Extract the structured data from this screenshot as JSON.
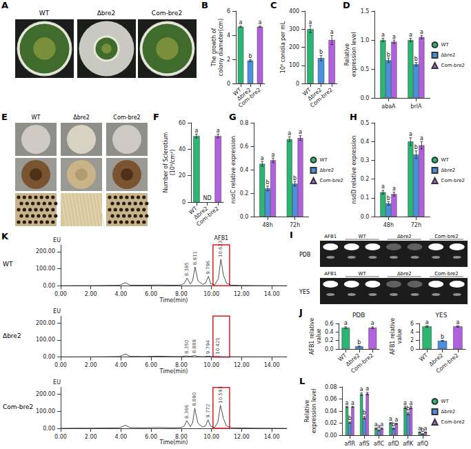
{
  "panels": {
    "A": {
      "panel": "A",
      "labels": [
        "WT",
        "Δbre2",
        "Com-bre2"
      ]
    },
    "E": {
      "panel": "E",
      "labels": [
        "WT",
        "Δbre2",
        "Com-bre2"
      ]
    },
    "I": {
      "panel": "I",
      "media": [
        "PDB",
        "YES"
      ],
      "standard": "AFB1",
      "labels": [
        "WT",
        "Δbre2",
        "Com-bre2"
      ]
    }
  },
  "chart_data": [
    {
      "panel": "B",
      "type": "bar",
      "categories": [
        "WT",
        "Δbre2",
        "Com-bre2"
      ],
      "values": [
        4.7,
        1.9,
        4.7
      ],
      "errors": [
        0.05,
        0.08,
        0.05
      ],
      "significance": [
        "a",
        "b",
        "a"
      ],
      "colors": [
        "#2bb673",
        "#4a8fe0",
        "#b161e0"
      ],
      "y_label": "The growth of colony diameter(cm)",
      "ylim": [
        0,
        6
      ],
      "yticks": [
        0,
        2,
        4,
        6
      ]
    },
    {
      "panel": "C",
      "type": "bar",
      "categories": [
        "WT",
        "Δbre2",
        "Com-bre2"
      ],
      "values": [
        300,
        140,
        240
      ],
      "errors": [
        20,
        15,
        25
      ],
      "significance": [
        "a",
        "b",
        "a"
      ],
      "colors": [
        "#2bb673",
        "#4a8fe0",
        "#b161e0"
      ],
      "y_label": "10⁶ conidia per mL",
      "ylim": [
        0,
        400
      ],
      "yticks": [
        0,
        100,
        200,
        300,
        400
      ]
    },
    {
      "panel": "D",
      "type": "bar",
      "categories": [
        "abaA",
        "brlA"
      ],
      "legend": "right",
      "y_label": "Relative expression level",
      "ylim": [
        0,
        1.5
      ],
      "yticks": [
        {
          "value": 0,
          "label": "0.0"
        },
        {
          "value": 0.5,
          "label": "0.5"
        },
        {
          "value": 1,
          "label": "1.0"
        },
        {
          "value": 1.5,
          "label": "1.5"
        }
      ],
      "series": [
        {
          "name": "WT",
          "color": "#2bb673",
          "marker": "circle",
          "values": [
            1.0,
            1.0
          ],
          "errors": [
            0.03,
            0.03
          ],
          "significance": [
            "a",
            "a"
          ]
        },
        {
          "name": "Δbre2",
          "color": "#4a8fe0",
          "marker": "square",
          "values": [
            0.65,
            0.58
          ],
          "errors": [
            0.04,
            0.03
          ],
          "significance": [
            "b",
            "b"
          ]
        },
        {
          "name": "Com-bre2",
          "color": "#b161e0",
          "marker": "triangle",
          "values": [
            0.97,
            1.05
          ],
          "errors": [
            0.03,
            0.03
          ],
          "significance": [
            "a",
            "a"
          ]
        }
      ]
    },
    {
      "panel": "F",
      "type": "bar",
      "categories": [
        "WT",
        "Δbre2",
        "Com-bre2"
      ],
      "values": [
        50,
        null,
        50
      ],
      "errors": [
        1.5,
        null,
        1.5
      ],
      "significance": [
        "a",
        null,
        "a"
      ],
      "annotations": [
        {
          "category": "Δbre2",
          "text": "ND"
        }
      ],
      "colors": [
        "#2bb673",
        "#4a8fe0",
        "#b161e0"
      ],
      "y_label": "Number of Sclerotium (10⁶/cm²)",
      "ylim": [
        0,
        60
      ],
      "yticks": [
        0,
        20,
        40,
        60
      ]
    },
    {
      "panel": "G",
      "type": "bar",
      "categories": [
        "48h",
        "72h"
      ],
      "legend": "right",
      "y_label": "nsdC relative expression",
      "ylim": [
        0,
        0.8
      ],
      "yticks": [
        {
          "value": 0,
          "label": "0.0"
        },
        0.2,
        0.4,
        0.6,
        0.8
      ],
      "series": [
        {
          "name": "WT",
          "color": "#2bb673",
          "marker": "circle",
          "values": [
            0.45,
            0.66
          ],
          "errors": [
            0.02,
            0.02
          ],
          "significance": [
            "a",
            "a"
          ]
        },
        {
          "name": "Δbre2",
          "color": "#4a8fe0",
          "marker": "square",
          "values": [
            0.24,
            0.28
          ],
          "errors": [
            0.02,
            0.02
          ],
          "significance": [
            "b",
            "b"
          ]
        },
        {
          "name": "Com-bre2",
          "color": "#b161e0",
          "marker": "triangle",
          "values": [
            0.48,
            0.67
          ],
          "errors": [
            0.02,
            0.02
          ],
          "significance": [
            "a",
            "a"
          ]
        }
      ]
    },
    {
      "panel": "H",
      "type": "bar",
      "categories": [
        "48h",
        "72h"
      ],
      "legend": "right",
      "y_label": "nsdD relative expression",
      "ylim": [
        0,
        0.5
      ],
      "yticks": [
        {
          "value": 0,
          "label": "0.0"
        },
        0.1,
        0.2,
        0.3,
        0.4,
        0.5
      ],
      "series": [
        {
          "name": "WT",
          "color": "#2bb673",
          "marker": "circle",
          "values": [
            0.13,
            0.4
          ],
          "errors": [
            0.01,
            0.02
          ],
          "significance": [
            "a",
            "a"
          ]
        },
        {
          "name": "Δbre2",
          "color": "#4a8fe0",
          "marker": "square",
          "values": [
            0.07,
            0.33
          ],
          "errors": [
            0.01,
            0.02
          ],
          "significance": [
            "b",
            "b"
          ]
        },
        {
          "name": "Com-bre2",
          "color": "#b161e0",
          "marker": "triangle",
          "values": [
            0.12,
            0.38
          ],
          "errors": [
            0.01,
            0.02
          ],
          "significance": [
            "a",
            "a"
          ]
        }
      ]
    },
    {
      "panel": "K",
      "type": "line",
      "color": "#222222",
      "x_label": "Time(min)",
      "y_label": "EU",
      "xlim": [
        0,
        15
      ],
      "xticks": [
        {
          "value": 0,
          "label": "0.00"
        },
        {
          "value": 2,
          "label": "2.00"
        },
        {
          "value": 4,
          "label": "4.00"
        },
        {
          "value": 6,
          "label": "6.00"
        },
        {
          "value": 8,
          "label": "8.00"
        },
        {
          "value": 10,
          "label": "10.00"
        },
        {
          "value": 12,
          "label": "12.00"
        },
        {
          "value": 14,
          "label": "14.00"
        }
      ],
      "ylim": [
        0,
        240
      ],
      "yticks": [
        {
          "value": 0,
          "label": "0.00"
        },
        {
          "value": 100,
          "label": "100.00"
        },
        {
          "value": 200,
          "label": "200.00"
        }
      ],
      "highlight": {
        "label": "AFB1",
        "color": "#e0191f",
        "xrange": [
          10.1,
          11.2
        ]
      },
      "series": [
        {
          "name": "WT",
          "points": [
            [
              0,
              0
            ],
            [
              1,
              1
            ],
            [
              2,
              1
            ],
            [
              3,
              2
            ],
            [
              3.9,
              3
            ],
            [
              4.3,
              18
            ],
            [
              4.6,
              4
            ],
            [
              5.5,
              3
            ],
            [
              6.5,
              5
            ],
            [
              7.5,
              3
            ],
            [
              8,
              5
            ],
            [
              8.2,
              15
            ],
            [
              8.385,
              45
            ],
            [
              8.6,
              10
            ],
            [
              8.75,
              30
            ],
            [
              8.911,
              110
            ],
            [
              9.1,
              30
            ],
            [
              9.4,
              8
            ],
            [
              9.6,
              15
            ],
            [
              9.796,
              55
            ],
            [
              9.95,
              12
            ],
            [
              10.2,
              5
            ],
            [
              10.45,
              40
            ],
            [
              10.623,
              155
            ],
            [
              10.8,
              60
            ],
            [
              11,
              15
            ],
            [
              11.3,
              4
            ],
            [
              12,
              2
            ],
            [
              13,
              1
            ],
            [
              15,
              0
            ]
          ],
          "peaks": [
            8.385,
            8.911,
            9.796,
            10.623
          ]
        },
        {
          "name": "Δbre2",
          "points": [
            [
              0,
              0
            ],
            [
              1,
              1
            ],
            [
              2,
              1
            ],
            [
              3,
              2
            ],
            [
              3.9,
              3
            ],
            [
              4.3,
              18
            ],
            [
              4.6,
              4
            ],
            [
              5.5,
              3
            ],
            [
              6.5,
              5
            ],
            [
              7.5,
              3
            ],
            [
              8,
              3
            ],
            [
              8.35,
              7
            ],
            [
              8.6,
              3
            ],
            [
              8.889,
              10
            ],
            [
              9.1,
              3
            ],
            [
              9.5,
              2
            ],
            [
              9.794,
              6
            ],
            [
              10,
              2
            ],
            [
              10.421,
              4
            ],
            [
              10.7,
              2
            ],
            [
              12,
              1
            ],
            [
              13,
              1
            ],
            [
              15,
              0
            ]
          ],
          "peaks": [
            {
              "value": 8.35,
              "label": "8.350"
            },
            8.889,
            9.794,
            10.421
          ]
        },
        {
          "name": "Com-bre2",
          "points": [
            [
              0,
              0
            ],
            [
              1,
              1
            ],
            [
              2,
              1
            ],
            [
              3,
              2
            ],
            [
              3.9,
              3
            ],
            [
              4.3,
              18
            ],
            [
              4.6,
              4
            ],
            [
              5.5,
              3
            ],
            [
              6.5,
              5
            ],
            [
              7.5,
              3
            ],
            [
              8,
              5
            ],
            [
              8.2,
              14
            ],
            [
              8.366,
              45
            ],
            [
              8.6,
              10
            ],
            [
              8.75,
              32
            ],
            [
              8.89,
              118
            ],
            [
              9.1,
              30
            ],
            [
              9.4,
              8
            ],
            [
              9.6,
              14
            ],
            [
              9.772,
              50
            ],
            [
              9.95,
              12
            ],
            [
              10.2,
              5
            ],
            [
              10.42,
              35
            ],
            [
              10.593,
              135
            ],
            [
              10.8,
              55
            ],
            [
              11,
              14
            ],
            [
              11.3,
              4
            ],
            [
              12,
              2
            ],
            [
              13,
              1
            ],
            [
              15,
              0
            ]
          ],
          "peaks": [
            8.366,
            {
              "value": 8.89,
              "label": "8.890"
            },
            9.772,
            10.593
          ]
        }
      ]
    },
    {
      "panel": "J",
      "type": "bar",
      "title": "PDB",
      "categories": [
        "WT",
        "Δbre2",
        "Com-bre2"
      ],
      "values": [
        0.5,
        0.06,
        0.5
      ],
      "errors": [
        0.02,
        0.01,
        0.02
      ],
      "significance": [
        "a",
        "b",
        "a"
      ],
      "colors": [
        "#2bb673",
        "#4a8fe0",
        "#b161e0"
      ],
      "y_label": "AFB1 relative value",
      "ylim": [
        0,
        0.6
      ],
      "yticks": [
        {
          "value": 0,
          "label": "0.0"
        },
        0.2,
        0.4,
        0.6
      ]
    },
    {
      "type": "bar",
      "title": "YES",
      "categories": [
        "WT",
        "Δbre2",
        "Com-bre2"
      ],
      "values": [
        5.3,
        1.9,
        5.3
      ],
      "errors": [
        0.15,
        0.1,
        0.15
      ],
      "significance": [
        "a",
        "b",
        "a"
      ],
      "colors": [
        "#2bb673",
        "#4a8fe0",
        "#b161e0"
      ],
      "y_label": "AFB1 relative value",
      "ylim": [
        0,
        6
      ],
      "yticks": [
        0,
        2,
        4,
        6
      ]
    },
    {
      "panel": "L",
      "type": "bar",
      "categories": [
        "aflR",
        "aflS",
        "aflC",
        "aflD",
        "aflK",
        "aflQ"
      ],
      "legend": "right",
      "y_label": "Relative expression level",
      "ylim": [
        0,
        0.08
      ],
      "yticks": [
        {
          "value": 0,
          "label": "0.00"
        },
        {
          "value": 0.02,
          "label": "0.02"
        },
        {
          "value": 0.04,
          "label": "0.04"
        },
        {
          "value": 0.06,
          "label": "0.06"
        },
        {
          "value": 0.08,
          "label": "0.08"
        }
      ],
      "series": [
        {
          "name": "WT",
          "color": "#2bb673",
          "marker": "circle",
          "values": [
            0.047,
            0.068,
            0.011,
            0.02,
            0.046,
            0.005
          ],
          "errors": [
            0.001,
            0.002,
            0.001,
            0.001,
            0.002,
            0.0005
          ],
          "significance": [
            "a",
            "a",
            "a",
            "a",
            "a",
            "a"
          ]
        },
        {
          "name": "Δbre2",
          "color": "#4a8fe0",
          "marker": "square",
          "values": [
            0.021,
            0.029,
            0.008,
            0.011,
            0.036,
            0.002
          ],
          "errors": [
            0.001,
            0.002,
            0.001,
            0.001,
            0.002,
            0.0005
          ],
          "significance": [
            "b",
            "b",
            "a",
            "b",
            "b",
            "b"
          ]
        },
        {
          "name": "Com-bre2",
          "color": "#b161e0",
          "marker": "triangle",
          "values": [
            0.047,
            0.069,
            0.011,
            0.019,
            0.046,
            0.005
          ],
          "errors": [
            0.001,
            0.002,
            0.001,
            0.001,
            0.002,
            0.0005
          ],
          "significance": [
            "a",
            "a",
            "a",
            "a",
            "a",
            "a"
          ]
        }
      ]
    }
  ]
}
